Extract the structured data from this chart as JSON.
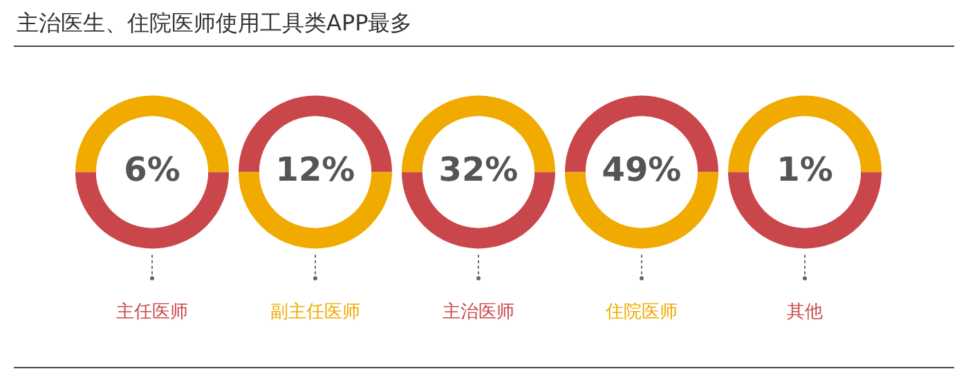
{
  "chart_data": {
    "type": "other",
    "title": "主治医生、住院医师使用工具类APP最多",
    "categories": [
      "主任医师",
      "副主任医师",
      "主治医师",
      "住院医师",
      "其他"
    ],
    "values": [
      6,
      12,
      32,
      49,
      1
    ],
    "value_labels": [
      "6%",
      "12%",
      "32%",
      "49%",
      "1%"
    ]
  }
}
